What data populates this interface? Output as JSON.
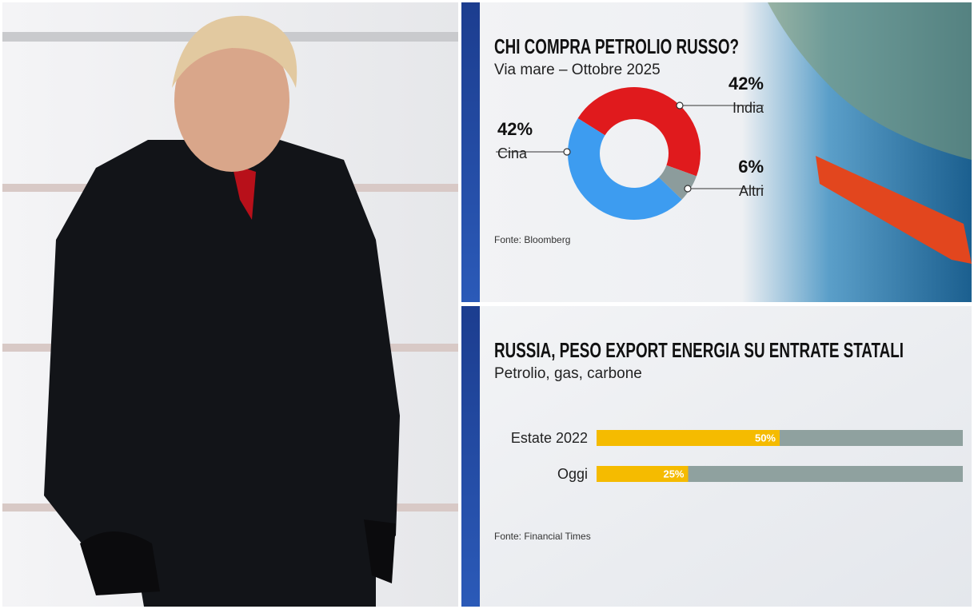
{
  "chart_data": [
    {
      "type": "pie",
      "title": "CHI COMPRA PETROLIO RUSSO?",
      "subtitle": "Via mare – Ottobre 2025",
      "categories": [
        "India",
        "Altri",
        "Cina"
      ],
      "values": [
        42,
        6,
        42
      ],
      "value_labels": [
        "42%",
        "6%",
        "42%"
      ],
      "colors": [
        "#e01a1d",
        "#8c9c9c",
        "#3d9cf0"
      ],
      "source": "Fonte: Bloomberg"
    },
    {
      "type": "bar",
      "title": "RUSSIA, PESO EXPORT ENERGIA SU ENTRATE STATALI",
      "subtitle": "Petrolio, gas, carbone",
      "categories": [
        "Estate 2022",
        "Oggi"
      ],
      "values": [
        50,
        25
      ],
      "value_labels": [
        "50%",
        "25%"
      ],
      "color": "#f5bb00",
      "track_color": "#8fa19f",
      "xlim": [
        0,
        100
      ],
      "source": "Fonte: Financial Times"
    }
  ]
}
